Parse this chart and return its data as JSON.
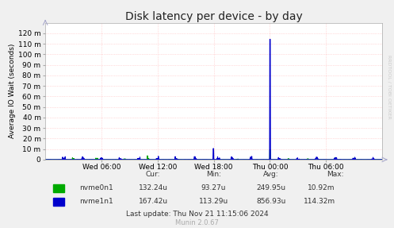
{
  "title": "Disk latency per device - by day",
  "ylabel": "Average IO Wait (seconds)",
  "background_color": "#f0f0f0",
  "plot_bg_color": "#ffffff",
  "grid_color": "#ffaaaa",
  "x_labels": [
    "Wed 06:00",
    "Wed 12:00",
    "Wed 18:00",
    "Thu 00:00",
    "Thu 06:00"
  ],
  "x_ticks": [
    6,
    12,
    18,
    24,
    30
  ],
  "y_ticks": [
    0,
    10,
    20,
    30,
    40,
    50,
    60,
    70,
    80,
    90,
    100,
    110,
    120
  ],
  "y_labels": [
    "0",
    "10 m",
    "20 m",
    "30 m",
    "40 m",
    "50 m",
    "60 m",
    "70 m",
    "80 m",
    "90 m",
    "100 m",
    "110 m",
    "120 m"
  ],
  "ylim_display": 130,
  "xlim": [
    0,
    36
  ],
  "series": [
    {
      "name": "nvme0n1",
      "color": "#00aa00",
      "line_width": 0.8
    },
    {
      "name": "nvme1n1",
      "color": "#0000cc",
      "line_width": 0.8
    }
  ],
  "legend_data": [
    {
      "label": "nvme0n1",
      "cur": "132.24u",
      "min": "93.27u",
      "avg": "249.95u",
      "max": "10.92m"
    },
    {
      "label": "nvme1n1",
      "cur": "167.42u",
      "min": "113.29u",
      "avg": "856.93u",
      "max": "114.32m"
    }
  ],
  "last_update": "Last update: Thu Nov 21 11:15:06 2024",
  "munin_version": "Munin 2.0.67",
  "rrdtool_label": "RRDTOOL / TOBI OETIKER",
  "title_fontsize": 10,
  "axis_fontsize": 6.5,
  "legend_fontsize": 6.5
}
